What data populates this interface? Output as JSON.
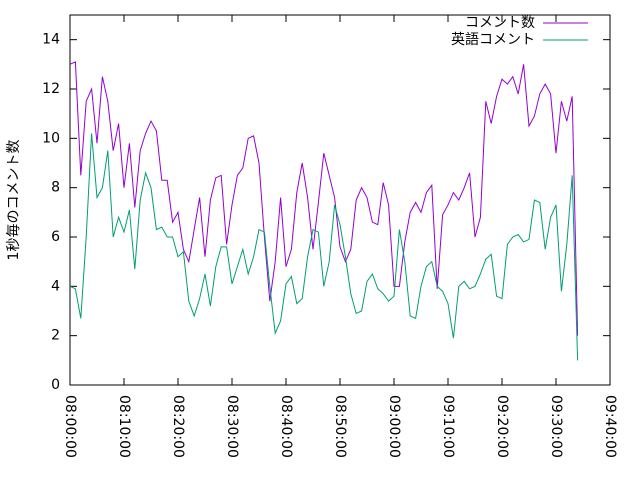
{
  "chart_data": {
    "type": "line",
    "y_label": "1秒毎のコメント数",
    "x": [
      "08:00:00",
      "08:01:00",
      "08:02:00",
      "08:03:00",
      "08:04:00",
      "08:05:00",
      "08:06:00",
      "08:07:00",
      "08:08:00",
      "08:09:00",
      "08:10:00",
      "08:11:00",
      "08:12:00",
      "08:13:00",
      "08:14:00",
      "08:15:00",
      "08:16:00",
      "08:17:00",
      "08:18:00",
      "08:19:00",
      "08:20:00",
      "08:21:00",
      "08:22:00",
      "08:23:00",
      "08:24:00",
      "08:25:00",
      "08:26:00",
      "08:27:00",
      "08:28:00",
      "08:29:00",
      "08:30:00",
      "08:31:00",
      "08:32:00",
      "08:33:00",
      "08:34:00",
      "08:35:00",
      "08:36:00",
      "08:37:00",
      "08:38:00",
      "08:39:00",
      "08:40:00",
      "08:41:00",
      "08:42:00",
      "08:43:00",
      "08:44:00",
      "08:45:00",
      "08:46:00",
      "08:47:00",
      "08:48:00",
      "08:49:00",
      "08:50:00",
      "08:51:00",
      "08:52:00",
      "08:53:00",
      "08:54:00",
      "08:55:00",
      "08:56:00",
      "08:57:00",
      "08:58:00",
      "08:59:00",
      "09:00:00",
      "09:01:00",
      "09:02:00",
      "09:03:00",
      "09:04:00",
      "09:05:00",
      "09:06:00",
      "09:07:00",
      "09:08:00",
      "09:09:00",
      "09:10:00",
      "09:11:00",
      "09:12:00",
      "09:13:00",
      "09:14:00",
      "09:15:00",
      "09:16:00",
      "09:17:00",
      "09:18:00",
      "09:19:00",
      "09:20:00",
      "09:21:00",
      "09:22:00",
      "09:23:00",
      "09:24:00",
      "09:25:00",
      "09:26:00",
      "09:27:00",
      "09:28:00",
      "09:29:00",
      "09:30:00",
      "09:31:00",
      "09:32:00",
      "09:33:00",
      "09:34:00"
    ],
    "series": [
      {
        "name": "コメント数",
        "color": "#9400d3",
        "values": [
          13.0,
          13.1,
          8.5,
          11.5,
          12.0,
          9.8,
          12.5,
          11.5,
          9.5,
          10.6,
          8.0,
          9.8,
          7.2,
          9.5,
          10.2,
          10.7,
          10.3,
          8.3,
          8.3,
          6.6,
          7.0,
          5.5,
          5.0,
          6.3,
          7.6,
          5.2,
          7.5,
          8.4,
          8.5,
          5.7,
          7.3,
          8.5,
          8.8,
          10.0,
          10.1,
          9.0,
          6.0,
          3.4,
          5.0,
          7.6,
          4.8,
          5.5,
          7.8,
          9.0,
          7.6,
          5.5,
          7.4,
          9.4,
          8.5,
          7.6,
          5.6,
          5.0,
          5.5,
          7.5,
          8.0,
          7.6,
          6.6,
          6.5,
          8.2,
          7.3,
          4.0,
          4.0,
          5.8,
          7.0,
          7.4,
          7.0,
          7.8,
          8.1,
          3.9,
          6.9,
          7.3,
          7.8,
          7.5,
          8.0,
          8.6,
          6.0,
          6.8,
          11.5,
          10.6,
          11.7,
          12.4,
          12.2,
          12.5,
          11.8,
          13.0,
          10.5,
          10.9,
          11.8,
          12.2,
          11.8,
          9.4,
          11.5,
          10.7,
          11.7,
          2.0
        ]
      },
      {
        "name": "英語コメント",
        "color": "#009e73",
        "values": [
          4.0,
          3.9,
          2.7,
          6.0,
          10.2,
          7.6,
          8.0,
          9.5,
          6.0,
          6.8,
          6.2,
          7.1,
          4.7,
          7.5,
          8.6,
          8.0,
          6.3,
          6.4,
          6.0,
          6.0,
          5.2,
          5.4,
          3.4,
          2.8,
          3.5,
          4.5,
          3.2,
          4.8,
          5.6,
          5.6,
          4.1,
          4.8,
          5.5,
          4.5,
          5.2,
          6.3,
          6.2,
          4.0,
          2.1,
          2.6,
          4.1,
          4.4,
          3.3,
          3.5,
          5.2,
          6.3,
          6.2,
          4.0,
          5.0,
          7.3,
          6.5,
          5.2,
          3.7,
          2.9,
          3.0,
          4.2,
          4.5,
          3.9,
          3.7,
          3.4,
          3.6,
          6.3,
          5.0,
          2.8,
          2.7,
          4.0,
          4.8,
          5.0,
          4.0,
          3.8,
          3.3,
          1.9,
          4.0,
          4.2,
          3.9,
          4.0,
          4.5,
          5.1,
          5.3,
          3.6,
          3.5,
          5.7,
          6.0,
          6.1,
          5.8,
          5.9,
          7.5,
          7.4,
          5.5,
          6.8,
          7.3,
          3.8,
          5.7,
          8.5,
          1.0
        ]
      }
    ],
    "xlim": [
      "08:00:00",
      "09:40:00"
    ],
    "xticks": [
      "08:00:00",
      "08:10:00",
      "08:20:00",
      "08:30:00",
      "08:40:00",
      "08:50:00",
      "09:00:00",
      "09:10:00",
      "09:20:00",
      "09:30:00",
      "09:40:00"
    ],
    "ylim": [
      0,
      15
    ],
    "yticks": [
      0,
      2,
      4,
      6,
      8,
      10,
      12,
      14
    ],
    "legend": "top-right"
  }
}
